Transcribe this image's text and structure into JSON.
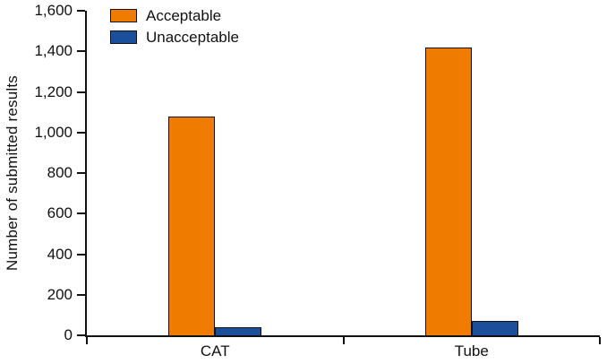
{
  "chart_data": {
    "type": "bar",
    "title": "",
    "ylabel": "Number of submitted results",
    "xlabel": "",
    "categories": [
      "CAT",
      "Tube"
    ],
    "series": [
      {
        "name": "Acceptable",
        "color": "#EF7C00",
        "values": [
          1080,
          1420
        ]
      },
      {
        "name": "Unacceptable",
        "color": "#1B4E9B",
        "values": [
          40,
          70
        ]
      }
    ],
    "ylim": [
      0,
      1600
    ],
    "yticks": [
      {
        "label": "0",
        "value": 0
      },
      {
        "label": "200",
        "value": 200
      },
      {
        "label": "400",
        "value": 400
      },
      {
        "label": "600",
        "value": 600
      },
      {
        "label": "800",
        "value": 800
      },
      {
        "label": "1,000",
        "value": 1000
      },
      {
        "label": "1,200",
        "value": 1200
      },
      {
        "label": "1,400",
        "value": 1400
      },
      {
        "label": "1,600",
        "value": 1600
      }
    ],
    "grid": false,
    "legend_position": "top-left"
  }
}
